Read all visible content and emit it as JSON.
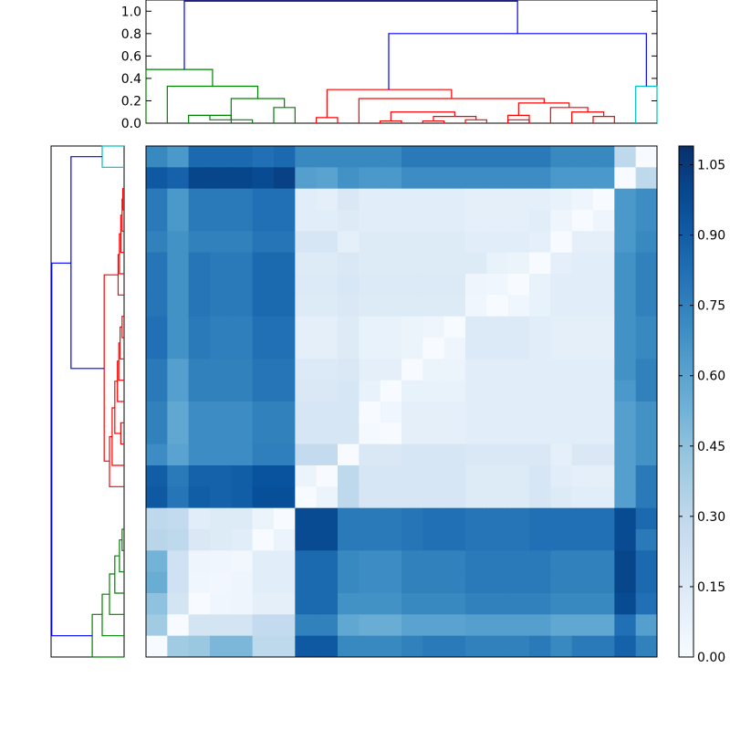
{
  "chart_data": {
    "type": "heatmap",
    "title": "",
    "xlabel": "",
    "ylabel": "",
    "n": 24,
    "link_colors": {
      "blue": "#0000ff",
      "green": "#008000",
      "red": "#ff0000",
      "cyan": "#00bfbf"
    },
    "top_dendrogram": {
      "ylim": [
        0,
        1.1
      ],
      "yticks": [
        "0.0",
        "0.2",
        "0.4",
        "0.6",
        "0.8",
        "1.0"
      ],
      "ytick_values": [
        0,
        0.2,
        0.4,
        0.6,
        0.8,
        1.0
      ],
      "segments": [
        {
          "color": "green",
          "x1": 1.5,
          "x2": 3.5,
          "h1": 0,
          "h2": 0,
          "h": 0.07
        },
        {
          "color": "green",
          "x1": 2.5,
          "x2": 4.5,
          "h1": 0.07,
          "h2": 0,
          "h": 0.03
        },
        {
          "color": "green",
          "x1": 5.5,
          "x2": 6.5,
          "h1": 0,
          "h2": 0,
          "h": 0.14
        },
        {
          "color": "green",
          "x1": 3.5,
          "x2": 6.0,
          "h1": 0.03,
          "h2": 0.14,
          "h": 0.22
        },
        {
          "color": "green",
          "x1": 0.5,
          "x2": 4.75,
          "h1": 0,
          "h2": 0.22,
          "h": 0.33
        },
        {
          "color": "green",
          "x1": -0.5,
          "x2": 2.625,
          "h1": 0,
          "h2": 0.33,
          "h": 0.48
        },
        {
          "color": "red",
          "x1": 7.5,
          "x2": 8.5,
          "h1": 0,
          "h2": 0,
          "h": 0.05
        },
        {
          "color": "red",
          "x1": 10.5,
          "x2": 11.5,
          "h1": 0,
          "h2": 0,
          "h": 0.02
        },
        {
          "color": "red",
          "x1": 12.5,
          "x2": 13.5,
          "h1": 0,
          "h2": 0,
          "h": 0.02
        },
        {
          "color": "red",
          "x1": 14.5,
          "x2": 15.5,
          "h1": 0,
          "h2": 0,
          "h": 0.03
        },
        {
          "color": "red",
          "x1": 13.0,
          "x2": 15.0,
          "h1": 0.02,
          "h2": 0.03,
          "h": 0.06
        },
        {
          "color": "red",
          "x1": 11.0,
          "x2": 14.0,
          "h1": 0.02,
          "h2": 0.06,
          "h": 0.1
        },
        {
          "color": "red",
          "x1": 16.5,
          "x2": 17.5,
          "h1": 0,
          "h2": 0,
          "h": 0.03
        },
        {
          "color": "red",
          "x1": 16.5,
          "x2": 17.5,
          "h1": 0,
          "h2": 0,
          "h": 0.07
        },
        {
          "color": "red",
          "x1": 20.5,
          "x2": 21.5,
          "h1": 0,
          "h2": 0,
          "h": 0.06
        },
        {
          "color": "red",
          "x1": 19.5,
          "x2": 21.0,
          "h1": 0,
          "h2": 0.06,
          "h": 0.1
        },
        {
          "color": "red",
          "x1": 18.5,
          "x2": 20.25,
          "h1": 0,
          "h2": 0.1,
          "h": 0.14
        },
        {
          "color": "red",
          "x1": 17.0,
          "x2": 19.375,
          "h1": 0.07,
          "h2": 0.14,
          "h": 0.18
        },
        {
          "color": "red",
          "x1": 9.5,
          "x2": 18.2,
          "h1": 0,
          "h2": 0.18,
          "h": 0.22
        },
        {
          "color": "red",
          "x1": 8.0,
          "x2": 13.85,
          "h1": 0.05,
          "h2": 0.22,
          "h": 0.3
        },
        {
          "color": "cyan",
          "x1": 22.5,
          "x2": 23.5,
          "h1": 0,
          "h2": 0,
          "h": 0.33
        },
        {
          "color": "blue",
          "x1": 10.9,
          "x2": 23.0,
          "h1": 0.3,
          "h2": 0.33,
          "h": 0.8
        },
        {
          "color": "blue",
          "x1": 1.3,
          "x2": 16.95,
          "h1": 0.48,
          "h2": 0.8,
          "h": 1.09
        }
      ]
    },
    "left_dendrogram": {
      "segments": [
        {
          "color": "cyan",
          "y1": 22.5,
          "y2": 23.5,
          "h1": 0,
          "h2": 0,
          "h": 0.33
        },
        {
          "color": "red",
          "y1": 20.5,
          "y2": 21.5,
          "h1": 0,
          "h2": 0,
          "h": 0.02
        },
        {
          "color": "red",
          "y1": 19.5,
          "y2": 21.0,
          "h1": 0,
          "h2": 0.02,
          "h": 0.03
        },
        {
          "color": "red",
          "y1": 18.5,
          "y2": 20.25,
          "h1": 0,
          "h2": 0.03,
          "h": 0.05
        },
        {
          "color": "red",
          "y1": 17.5,
          "y2": 19.375,
          "h1": 0,
          "h2": 0.05,
          "h": 0.07
        },
        {
          "color": "red",
          "y1": 16.5,
          "y2": 18.4,
          "h1": 0,
          "h2": 0.07,
          "h": 0.09
        },
        {
          "color": "red",
          "y1": 14.5,
          "y2": 15.5,
          "h1": 0,
          "h2": 0,
          "h": 0.03
        },
        {
          "color": "red",
          "y1": 13.5,
          "y2": 15.0,
          "h1": 0,
          "h2": 0.03,
          "h": 0.06
        },
        {
          "color": "red",
          "y1": 12.5,
          "y2": 14.25,
          "h1": 0,
          "h2": 0.06,
          "h": 0.08
        },
        {
          "color": "red",
          "y1": 11.5,
          "y2": 13.4,
          "h1": 0,
          "h2": 0.08,
          "h": 0.1
        },
        {
          "color": "red",
          "y1": 9.5,
          "y2": 10.5,
          "h1": 0,
          "h2": 0,
          "h": 0.05
        },
        {
          "color": "red",
          "y1": 10.0,
          "y2": 12.45,
          "h1": 0.05,
          "h2": 0.1,
          "h": 0.14
        },
        {
          "color": "red",
          "y1": 8.5,
          "y2": 11.2,
          "h1": 0,
          "h2": 0.14,
          "h": 0.18
        },
        {
          "color": "red",
          "y1": 7.5,
          "y2": 9.85,
          "h1": 0,
          "h2": 0.18,
          "h": 0.22
        },
        {
          "color": "red",
          "y1": 8.7,
          "y2": 17.45,
          "h1": 0.22,
          "h2": 0.09,
          "h": 0.3
        },
        {
          "color": "green",
          "y1": 4.5,
          "y2": 5.5,
          "h1": 0,
          "h2": 0,
          "h": 0.03
        },
        {
          "color": "green",
          "y1": 3.5,
          "y2": 5.0,
          "h1": 0,
          "h2": 0.03,
          "h": 0.07
        },
        {
          "color": "green",
          "y1": 2.5,
          "y2": 4.25,
          "h1": 0,
          "h2": 0.07,
          "h": 0.14
        },
        {
          "color": "green",
          "y1": 1.5,
          "y2": 3.4,
          "h1": 0,
          "h2": 0.14,
          "h": 0.22
        },
        {
          "color": "green",
          "y1": 0.5,
          "y2": 2.45,
          "h1": 0,
          "h2": 0.22,
          "h": 0.33
        },
        {
          "color": "green",
          "y1": -0.5,
          "y2": 1.5,
          "h1": 0,
          "h2": 0.33,
          "h": 0.48
        },
        {
          "color": "blue",
          "y1": 13.05,
          "y2": 23.0,
          "h1": 0.3,
          "h2": 0.33,
          "h": 0.8
        },
        {
          "color": "blue",
          "y1": 0.5,
          "y2": 18.0,
          "h1": 0.48,
          "h2": 0.8,
          "h": 1.09
        }
      ]
    },
    "colorbar": {
      "ticks": [
        "0.00",
        "0.15",
        "0.30",
        "0.45",
        "0.60",
        "0.75",
        "0.90",
        "1.05"
      ],
      "tick_values": [
        0,
        0.15,
        0.3,
        0.45,
        0.6,
        0.75,
        0.9,
        1.05
      ],
      "vmin": 0,
      "vmax": 1.09,
      "colormap": "Blues"
    },
    "matrix": [
      [
        0.72,
        0.65,
        0.85,
        0.85,
        0.85,
        0.82,
        0.85,
        0.72,
        0.72,
        0.72,
        0.72,
        0.72,
        0.78,
        0.78,
        0.78,
        0.78,
        0.78,
        0.78,
        0.78,
        0.72,
        0.72,
        0.72,
        0.3,
        0.0
      ],
      [
        0.92,
        0.88,
        1.0,
        1.0,
        1.0,
        0.98,
        1.02,
        0.62,
        0.6,
        0.68,
        0.65,
        0.65,
        0.7,
        0.7,
        0.7,
        0.7,
        0.7,
        0.7,
        0.7,
        0.65,
        0.65,
        0.65,
        0.0,
        0.3
      ],
      [
        0.78,
        0.65,
        0.78,
        0.78,
        0.78,
        0.82,
        0.82,
        0.12,
        0.1,
        0.16,
        0.12,
        0.12,
        0.12,
        0.12,
        0.12,
        0.1,
        0.1,
        0.1,
        0.1,
        0.08,
        0.05,
        0.0,
        0.65,
        0.7
      ],
      [
        0.78,
        0.65,
        0.78,
        0.78,
        0.78,
        0.82,
        0.82,
        0.12,
        0.12,
        0.14,
        0.12,
        0.12,
        0.12,
        0.12,
        0.12,
        0.1,
        0.1,
        0.1,
        0.12,
        0.05,
        0.0,
        0.05,
        0.65,
        0.7
      ],
      [
        0.75,
        0.68,
        0.75,
        0.75,
        0.75,
        0.8,
        0.8,
        0.18,
        0.18,
        0.1,
        0.14,
        0.14,
        0.14,
        0.14,
        0.14,
        0.12,
        0.12,
        0.12,
        0.1,
        0.0,
        0.1,
        0.1,
        0.65,
        0.72
      ],
      [
        0.8,
        0.68,
        0.8,
        0.78,
        0.78,
        0.85,
        0.85,
        0.14,
        0.14,
        0.16,
        0.14,
        0.14,
        0.14,
        0.14,
        0.14,
        0.14,
        0.08,
        0.06,
        0.0,
        0.1,
        0.12,
        0.12,
        0.68,
        0.75
      ],
      [
        0.8,
        0.68,
        0.8,
        0.78,
        0.78,
        0.85,
        0.85,
        0.15,
        0.15,
        0.17,
        0.15,
        0.15,
        0.15,
        0.15,
        0.15,
        0.05,
        0.04,
        0.0,
        0.08,
        0.12,
        0.12,
        0.12,
        0.68,
        0.75
      ],
      [
        0.8,
        0.68,
        0.8,
        0.78,
        0.78,
        0.85,
        0.85,
        0.14,
        0.14,
        0.16,
        0.14,
        0.14,
        0.14,
        0.14,
        0.14,
        0.04,
        0.0,
        0.04,
        0.08,
        0.12,
        0.12,
        0.12,
        0.68,
        0.75
      ],
      [
        0.82,
        0.68,
        0.78,
        0.76,
        0.76,
        0.82,
        0.82,
        0.1,
        0.1,
        0.14,
        0.08,
        0.08,
        0.06,
        0.05,
        0.0,
        0.15,
        0.15,
        0.15,
        0.12,
        0.1,
        0.1,
        0.1,
        0.68,
        0.72
      ],
      [
        0.82,
        0.68,
        0.78,
        0.76,
        0.76,
        0.82,
        0.82,
        0.1,
        0.1,
        0.14,
        0.08,
        0.08,
        0.06,
        0.0,
        0.05,
        0.15,
        0.15,
        0.15,
        0.12,
        0.1,
        0.1,
        0.1,
        0.68,
        0.72
      ],
      [
        0.78,
        0.62,
        0.75,
        0.75,
        0.75,
        0.8,
        0.8,
        0.15,
        0.15,
        0.16,
        0.1,
        0.1,
        0.0,
        0.06,
        0.06,
        0.12,
        0.12,
        0.12,
        0.12,
        0.12,
        0.12,
        0.12,
        0.68,
        0.75
      ],
      [
        0.78,
        0.62,
        0.75,
        0.75,
        0.75,
        0.8,
        0.8,
        0.16,
        0.16,
        0.18,
        0.08,
        0.0,
        0.08,
        0.08,
        0.08,
        0.12,
        0.12,
        0.12,
        0.12,
        0.12,
        0.12,
        0.12,
        0.65,
        0.75
      ],
      [
        0.75,
        0.58,
        0.7,
        0.7,
        0.7,
        0.75,
        0.75,
        0.18,
        0.18,
        0.18,
        0.0,
        0.04,
        0.1,
        0.1,
        0.1,
        0.12,
        0.12,
        0.12,
        0.12,
        0.12,
        0.12,
        0.12,
        0.62,
        0.68
      ],
      [
        0.75,
        0.58,
        0.7,
        0.7,
        0.7,
        0.75,
        0.75,
        0.18,
        0.18,
        0.18,
        0.02,
        0.0,
        0.1,
        0.1,
        0.1,
        0.12,
        0.12,
        0.12,
        0.12,
        0.12,
        0.12,
        0.12,
        0.62,
        0.68
      ],
      [
        0.7,
        0.6,
        0.7,
        0.7,
        0.7,
        0.76,
        0.76,
        0.28,
        0.28,
        0.0,
        0.16,
        0.16,
        0.18,
        0.18,
        0.18,
        0.16,
        0.16,
        0.16,
        0.16,
        0.1,
        0.16,
        0.16,
        0.62,
        0.68
      ],
      [
        0.9,
        0.78,
        0.88,
        0.88,
        0.9,
        0.95,
        0.95,
        0.06,
        0.0,
        0.3,
        0.18,
        0.18,
        0.18,
        0.18,
        0.18,
        0.14,
        0.14,
        0.14,
        0.18,
        0.12,
        0.1,
        0.1,
        0.62,
        0.78
      ],
      [
        0.92,
        0.8,
        0.9,
        0.88,
        0.9,
        0.96,
        0.96,
        0.0,
        0.06,
        0.3,
        0.18,
        0.18,
        0.18,
        0.18,
        0.18,
        0.14,
        0.14,
        0.14,
        0.18,
        0.14,
        0.12,
        0.12,
        0.62,
        0.78
      ],
      [
        0.3,
        0.28,
        0.12,
        0.14,
        0.14,
        0.06,
        0.0,
        0.98,
        0.98,
        0.78,
        0.78,
        0.78,
        0.8,
        0.82,
        0.82,
        0.8,
        0.8,
        0.8,
        0.82,
        0.82,
        0.82,
        0.82,
        0.98,
        0.85
      ],
      [
        0.32,
        0.3,
        0.16,
        0.14,
        0.12,
        0.0,
        0.06,
        0.98,
        0.98,
        0.78,
        0.78,
        0.78,
        0.8,
        0.82,
        0.82,
        0.8,
        0.8,
        0.8,
        0.82,
        0.82,
        0.82,
        0.82,
        0.98,
        0.78
      ],
      [
        0.52,
        0.22,
        0.05,
        0.04,
        0.03,
        0.12,
        0.12,
        0.85,
        0.85,
        0.72,
        0.7,
        0.7,
        0.75,
        0.75,
        0.75,
        0.78,
        0.78,
        0.78,
        0.78,
        0.75,
        0.75,
        0.75,
        1.0,
        0.85
      ],
      [
        0.55,
        0.22,
        0.04,
        0.03,
        0.05,
        0.12,
        0.12,
        0.85,
        0.85,
        0.72,
        0.7,
        0.7,
        0.75,
        0.75,
        0.75,
        0.78,
        0.78,
        0.78,
        0.78,
        0.75,
        0.75,
        0.75,
        1.0,
        0.85
      ],
      [
        0.45,
        0.2,
        0.0,
        0.04,
        0.05,
        0.1,
        0.1,
        0.85,
        0.85,
        0.68,
        0.68,
        0.68,
        0.72,
        0.72,
        0.72,
        0.75,
        0.75,
        0.75,
        0.75,
        0.72,
        0.72,
        0.72,
        0.98,
        0.82
      ],
      [
        0.4,
        0.0,
        0.2,
        0.2,
        0.2,
        0.28,
        0.28,
        0.75,
        0.75,
        0.58,
        0.55,
        0.55,
        0.6,
        0.6,
        0.6,
        0.62,
        0.62,
        0.62,
        0.62,
        0.58,
        0.58,
        0.58,
        0.82,
        0.62
      ],
      [
        0.0,
        0.4,
        0.42,
        0.5,
        0.5,
        0.3,
        0.3,
        0.92,
        0.92,
        0.72,
        0.72,
        0.72,
        0.75,
        0.78,
        0.78,
        0.75,
        0.75,
        0.75,
        0.78,
        0.72,
        0.78,
        0.78,
        0.88,
        0.75
      ]
    ]
  }
}
